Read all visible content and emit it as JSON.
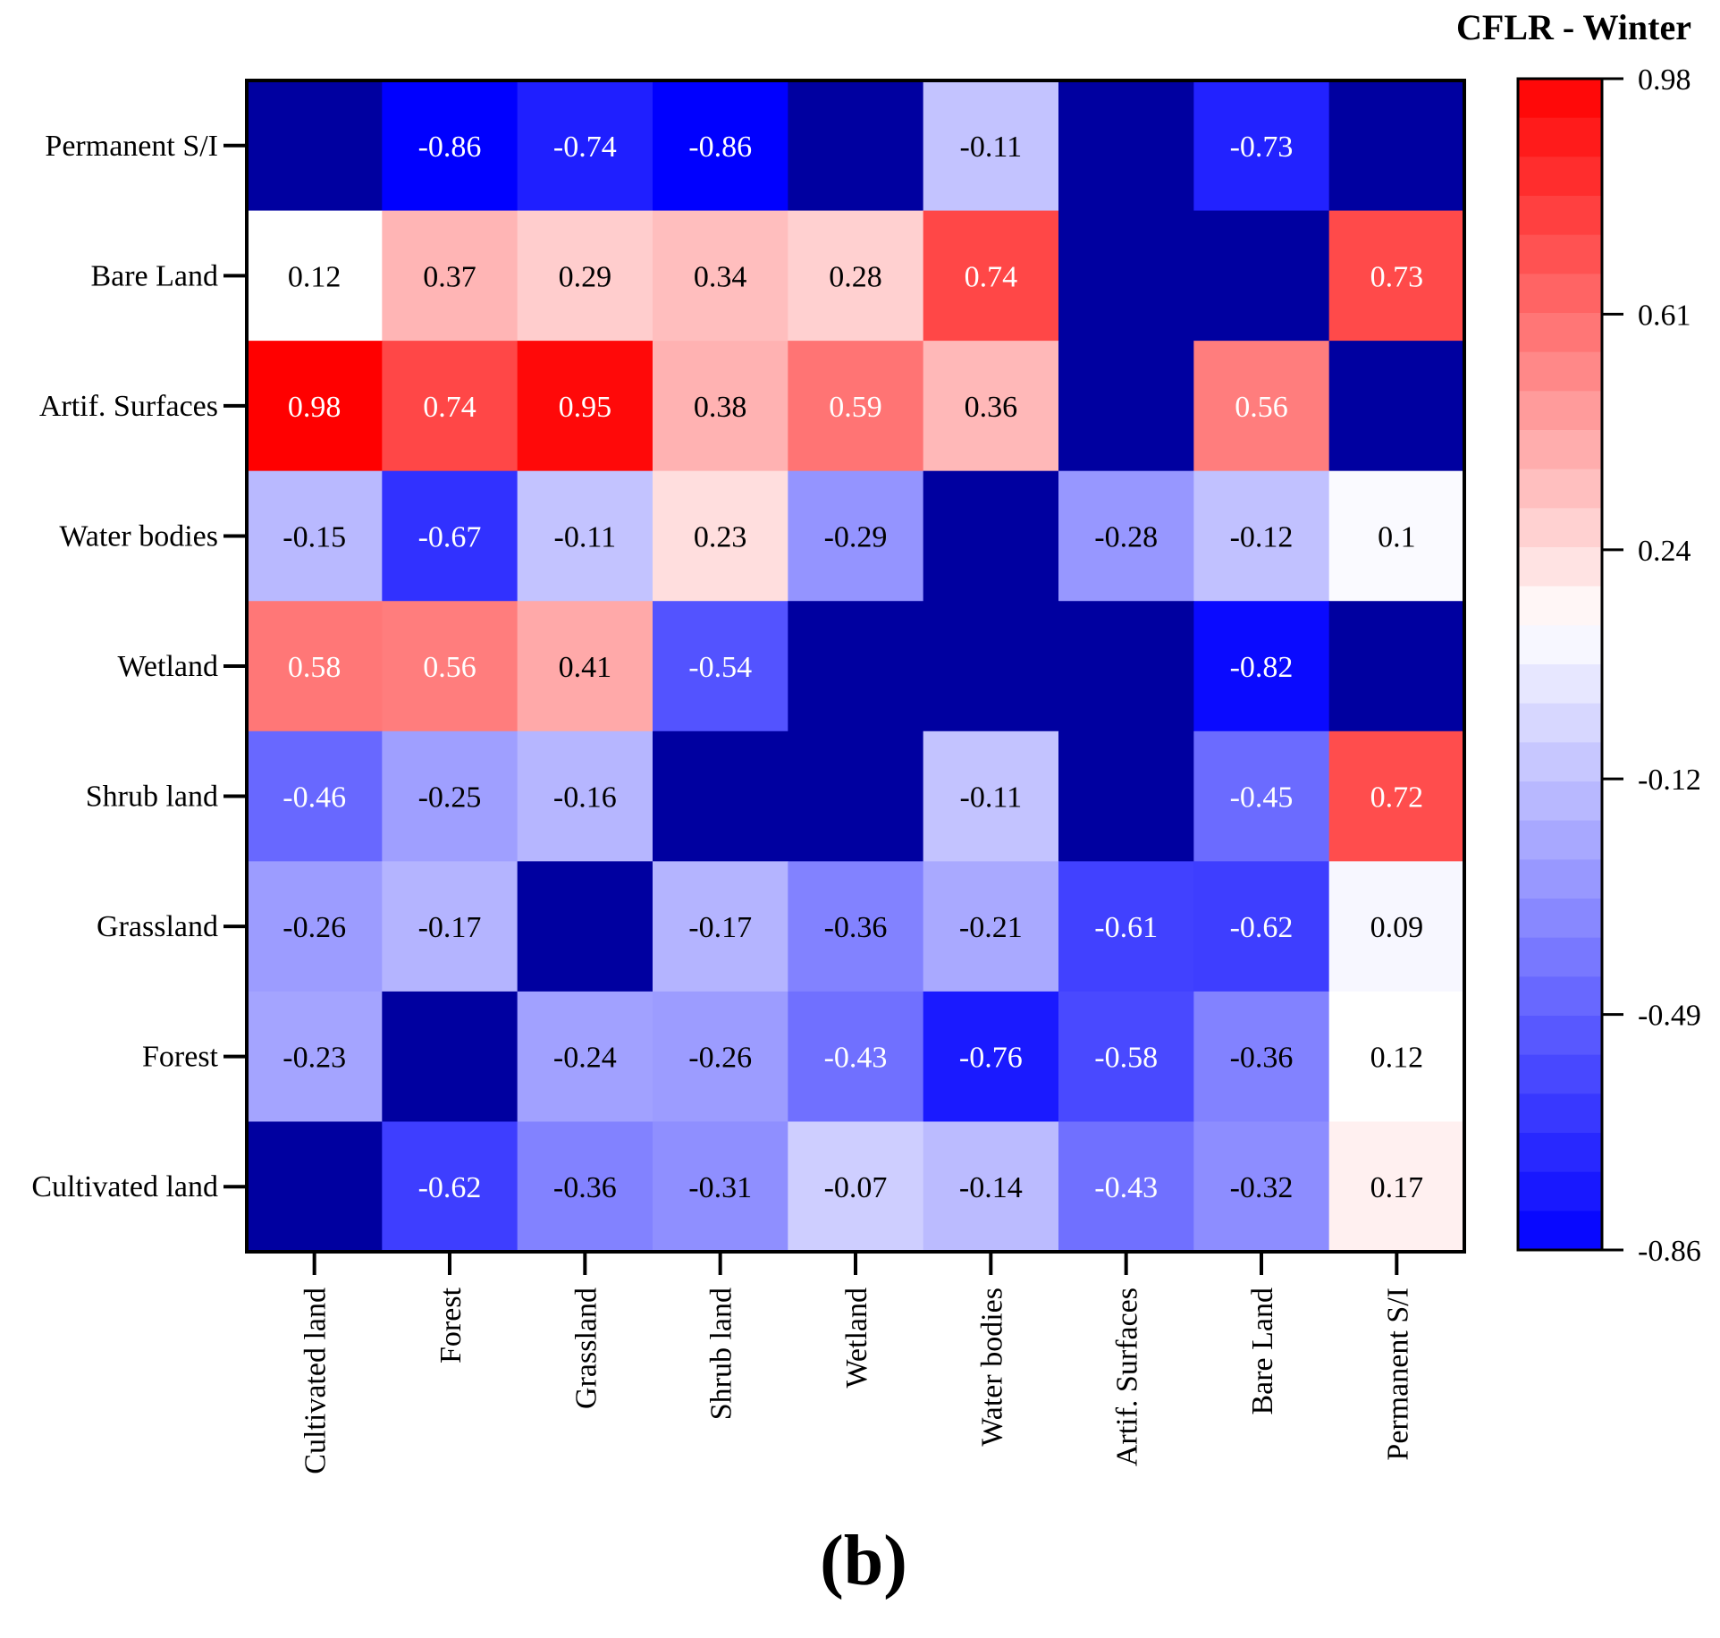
{
  "chart_data": {
    "type": "heatmap",
    "title": "CFLR - Winter",
    "panel_label": "(b)",
    "x_categories": [
      "Cultivated land",
      "Forest",
      "Grassland",
      "Shrub land",
      "Wetland",
      "Water bodies",
      "Artif. Surfaces",
      "Bare Land",
      "Permanent S/I"
    ],
    "y_categories": [
      "Permanent S/I",
      "Bare Land",
      "Artif. Surfaces",
      "Water bodies",
      "Wetland",
      "Shrub land",
      "Grassland",
      "Forest",
      "Cultivated land"
    ],
    "values": [
      [
        null,
        -0.86,
        -0.74,
        -0.86,
        null,
        -0.11,
        null,
        -0.73,
        null
      ],
      [
        0.12,
        0.37,
        0.29,
        0.34,
        0.28,
        0.74,
        null,
        null,
        0.73
      ],
      [
        0.98,
        0.74,
        0.95,
        0.38,
        0.59,
        0.36,
        null,
        0.56,
        null
      ],
      [
        -0.15,
        -0.67,
        -0.11,
        0.23,
        -0.29,
        null,
        -0.28,
        -0.12,
        0.1
      ],
      [
        0.58,
        0.56,
        0.41,
        -0.54,
        null,
        null,
        null,
        -0.82,
        null
      ],
      [
        -0.46,
        -0.25,
        -0.16,
        null,
        null,
        -0.11,
        null,
        -0.45,
        0.72
      ],
      [
        -0.26,
        -0.17,
        null,
        -0.17,
        -0.36,
        -0.21,
        -0.61,
        -0.62,
        0.09
      ],
      [
        -0.23,
        null,
        -0.24,
        -0.26,
        -0.43,
        -0.76,
        -0.58,
        -0.36,
        0.12
      ],
      [
        null,
        -0.62,
        -0.36,
        -0.31,
        -0.07,
        -0.14,
        -0.43,
        -0.32,
        0.17
      ]
    ],
    "colorbar": {
      "min": -0.86,
      "max": 0.98,
      "ticks": [
        0.98,
        0.61,
        0.24,
        -0.12,
        -0.49,
        -0.86
      ],
      "tick_labels": [
        "0.98",
        "0.61",
        "0.24",
        "-0.12",
        "-0.49",
        "-0.86"
      ],
      "low_color": "#0000ff",
      "mid_color": "#ffffff",
      "high_color": "#ff0000",
      "mid_value": 0.12
    },
    "missing_color": "#0000a0"
  }
}
